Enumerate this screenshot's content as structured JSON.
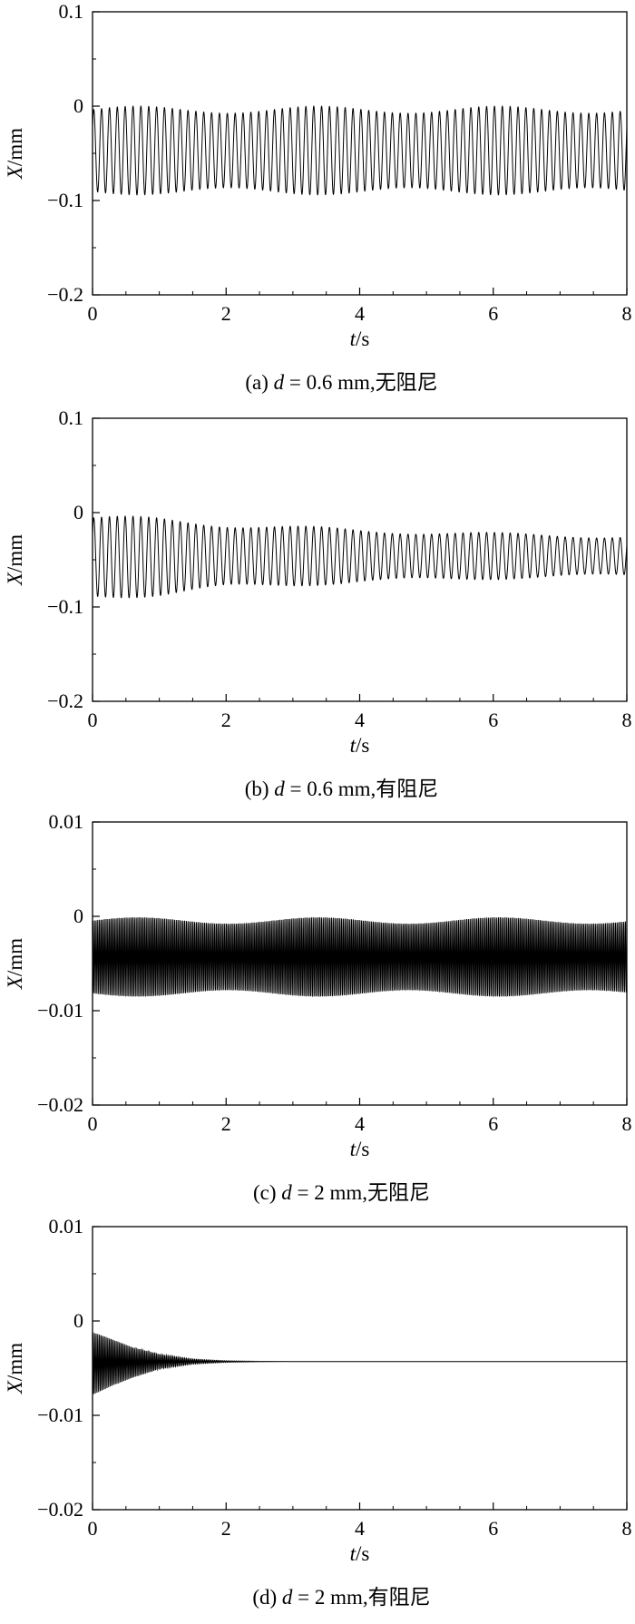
{
  "chart_data": [
    {
      "type": "line",
      "caption": {
        "prefix": "(a) ",
        "var": "d",
        "rest": " = 0.6 mm,无阻尼"
      },
      "xlabel": {
        "var": "t",
        "unit": "/s"
      },
      "ylabel": {
        "var": "X",
        "unit": "/mm"
      },
      "xlim": [
        0,
        8
      ],
      "ylim": [
        -0.2,
        0.1
      ],
      "xticks": [
        "0",
        "2",
        "4",
        "6",
        "8"
      ],
      "yticks": [
        "−0.2",
        "−0.1",
        "0",
        "0.1"
      ],
      "xtick_values": [
        0,
        2,
        4,
        6,
        8
      ],
      "ytick_values": [
        -0.2,
        -0.1,
        0,
        0.1
      ],
      "series": [
        {
          "x": [
            0,
            8
          ],
          "center": [
            -0.047,
            -0.047
          ],
          "amplitude": [
            0.047,
            0.047
          ],
          "frequency_hz": 8.5,
          "color": "#000000"
        }
      ]
    },
    {
      "type": "line",
      "caption": {
        "prefix": "(b) ",
        "var": "d",
        "rest": " = 0.6 mm,有阻尼"
      },
      "xlabel": {
        "var": "t",
        "unit": "/s"
      },
      "ylabel": {
        "var": "X",
        "unit": "/mm"
      },
      "xlim": [
        0,
        8
      ],
      "ylim": [
        -0.2,
        0.1
      ],
      "xticks": [
        "0",
        "2",
        "4",
        "6",
        "8"
      ],
      "yticks": [
        "−0.2",
        "−0.1",
        "0",
        "0.1"
      ],
      "xtick_values": [
        0,
        2,
        4,
        6,
        8
      ],
      "ytick_values": [
        -0.2,
        -0.1,
        0,
        0.1
      ],
      "series": [
        {
          "x": [
            0,
            1,
            2,
            4,
            6,
            8
          ],
          "center": [
            -0.047,
            -0.047,
            -0.046,
            -0.046,
            -0.046,
            -0.046
          ],
          "amplitude": [
            0.045,
            0.042,
            0.036,
            0.029,
            0.025,
            0.022
          ],
          "frequency_hz": 8.5,
          "color": "#000000"
        }
      ]
    },
    {
      "type": "line",
      "caption": {
        "prefix": "(c) ",
        "var": "d",
        "rest": " = 2 mm,无阻尼"
      },
      "xlabel": {
        "var": "t",
        "unit": "/s"
      },
      "ylabel": {
        "var": "X",
        "unit": "/mm"
      },
      "xlim": [
        0,
        8
      ],
      "ylim": [
        -0.02,
        0.01
      ],
      "xticks": [
        "0",
        "2",
        "4",
        "6",
        "8"
      ],
      "yticks": [
        "−0.02",
        "−0.01",
        "0",
        "0.01"
      ],
      "xtick_values": [
        0,
        2,
        4,
        6,
        8
      ],
      "ytick_values": [
        -0.02,
        -0.01,
        0,
        0.01
      ],
      "series": [
        {
          "x": [
            0,
            8
          ],
          "center": [
            -0.0043,
            -0.0043
          ],
          "amplitude": [
            0.0042,
            0.0042
          ],
          "frequency_hz": 40,
          "color": "#000000"
        }
      ]
    },
    {
      "type": "line",
      "caption": {
        "prefix": "(d) ",
        "var": "d",
        "rest": " = 2 mm,有阻尼"
      },
      "xlabel": {
        "var": "t",
        "unit": "/s"
      },
      "ylabel": {
        "var": "X",
        "unit": "/mm"
      },
      "xlim": [
        0,
        8
      ],
      "ylim": [
        -0.02,
        0.01
      ],
      "xticks": [
        "0",
        "2",
        "4",
        "6",
        "8"
      ],
      "yticks": [
        "−0.02",
        "−0.01",
        "0",
        "0.01"
      ],
      "xtick_values": [
        0,
        2,
        4,
        6,
        8
      ],
      "ytick_values": [
        -0.02,
        -0.01,
        0,
        0.01
      ],
      "series": [
        {
          "x": [
            0,
            0.3,
            0.6,
            1,
            1.5,
            2,
            2.5,
            3,
            8
          ],
          "center": [
            -0.0045,
            -0.0044,
            -0.0044,
            -0.0043,
            -0.0043,
            -0.0043,
            -0.0043,
            -0.0043,
            -0.0043
          ],
          "amplitude": [
            0.0036,
            0.0025,
            0.0016,
            0.0008,
            0.0003,
            0.0001,
            3e-05,
            0,
            0
          ],
          "frequency_hz": 40,
          "color": "#000000"
        }
      ]
    }
  ]
}
